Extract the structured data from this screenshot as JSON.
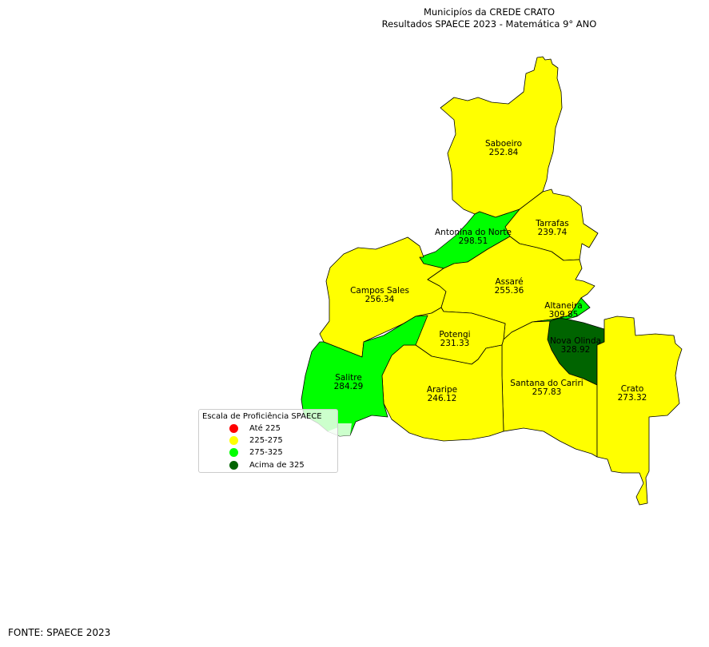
{
  "title": {
    "line1": "Municipíos da CREDE CRATO",
    "line2": "Resultados SPAECE 2023 - Matemática 9° ANO"
  },
  "colors": {
    "ate_225": "#ff0000",
    "c225_275": "#ffff00",
    "c275_325": "#00ff00",
    "acima_325": "#006400",
    "salitre_light": "#ccffcc"
  },
  "legend": {
    "title": "Escala de Proficiência SPAECE",
    "items": [
      {
        "label": "Até 225",
        "color": "#ff0000"
      },
      {
        "label": "225-275",
        "color": "#ffff00"
      },
      {
        "label": "275-325",
        "color": "#00ff00"
      },
      {
        "label": "Acima de 325",
        "color": "#006400"
      }
    ]
  },
  "regions": [
    {
      "name": "Saboeiro",
      "value": "252.84",
      "color": "#ffff00"
    },
    {
      "name": "Tarrafas",
      "value": "239.74",
      "color": "#ffff00"
    },
    {
      "name": "Antonina do Norte",
      "value": "298.51",
      "color": "#00ff00"
    },
    {
      "name": "Campos Sales",
      "value": "256.34",
      "color": "#ffff00"
    },
    {
      "name": "Assaré",
      "value": "255.36",
      "color": "#ffff00"
    },
    {
      "name": "Altaneira",
      "value": "309.85",
      "color": "#00ff00"
    },
    {
      "name": "Potengi",
      "value": "231.33",
      "color": "#ffff00"
    },
    {
      "name": "Nova Olinda",
      "value": "328.92",
      "color": "#006400"
    },
    {
      "name": "Salitre",
      "value": "284.29",
      "color": "#00ff00"
    },
    {
      "name": "Araripe",
      "value": "246.12",
      "color": "#ffff00"
    },
    {
      "name": "Santana do Cariri",
      "value": "257.83",
      "color": "#ffff00"
    },
    {
      "name": "Crato",
      "value": "273.32",
      "color": "#ffff00"
    }
  ],
  "source": "FONTE: SPAECE 2023"
}
